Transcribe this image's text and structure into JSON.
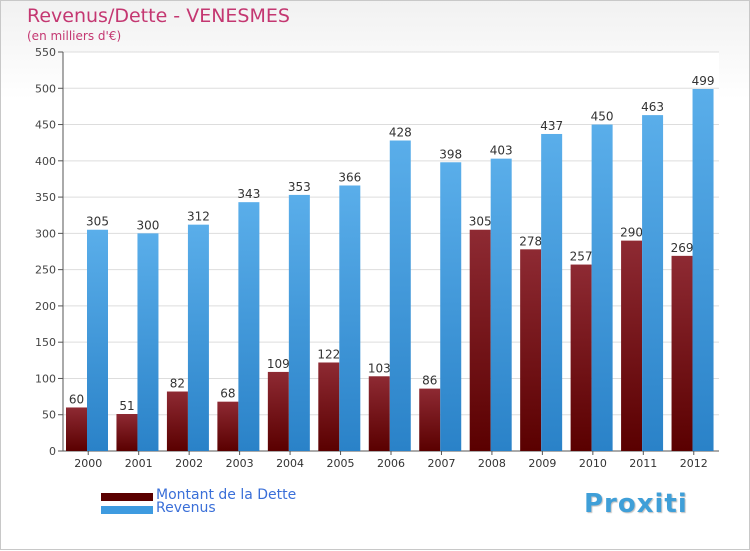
{
  "colors": {
    "title": "#c43771",
    "debt_light": "#8e2a33",
    "debt_dark": "#5a0000",
    "revenue_light": "#5aaeea",
    "revenue_dark": "#2a82c8",
    "legend_text": "#3a6fd8"
  },
  "chart_data": {
    "type": "bar",
    "title": "Revenus/Dette - VENESMES",
    "subtitle": "(en milliers d'€)",
    "categories": [
      "2000",
      "2001",
      "2002",
      "2003",
      "2004",
      "2005",
      "2006",
      "2007",
      "2008",
      "2009",
      "2010",
      "2011",
      "2012"
    ],
    "series": [
      {
        "name": "Montant de la Dette",
        "values": [
          60,
          51,
          82,
          68,
          109,
          122,
          103,
          86,
          305,
          278,
          257,
          290,
          269
        ]
      },
      {
        "name": "Revenus",
        "values": [
          305,
          300,
          312,
          343,
          353,
          366,
          428,
          398,
          403,
          437,
          450,
          463,
          499
        ]
      }
    ],
    "ylim": [
      0,
      550
    ],
    "yticks": [
      0,
      50,
      100,
      150,
      200,
      250,
      300,
      350,
      400,
      450,
      500,
      550
    ],
    "grid": true,
    "legend_position": "bottom-left"
  },
  "logo": {
    "text": "Proxiti",
    "icon": "proxiti-logo"
  }
}
